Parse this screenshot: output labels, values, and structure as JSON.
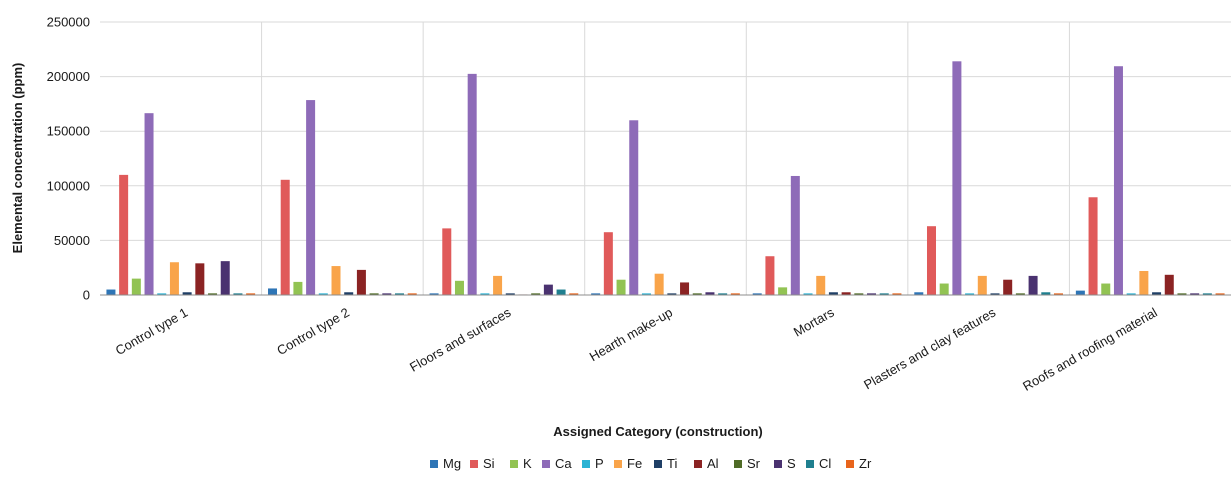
{
  "chart_data": {
    "type": "bar",
    "title": "",
    "xlabel": "Assigned Category (construction)",
    "ylabel": "Elemental concentration (ppm)",
    "ylim": [
      0,
      250000
    ],
    "yticks": [
      "0",
      "50000",
      "100000",
      "150000",
      "200000",
      "250000"
    ],
    "grid": true,
    "legend_position": "bottom",
    "categories": [
      "Control type 1",
      "Control type 2",
      "Floors and surfaces",
      "Hearth make-up",
      "Mortars",
      "Plasters and clay features",
      "Roofs and roofing material"
    ],
    "series": [
      {
        "name": "Mg",
        "color": "#2e75b6",
        "values": [
          5000,
          6000,
          1500,
          1500,
          1500,
          2500,
          4000
        ]
      },
      {
        "name": "Si",
        "color": "#e05a5a",
        "values": [
          110000,
          105500,
          61000,
          57500,
          35500,
          63000,
          89500
        ]
      },
      {
        "name": "K",
        "color": "#92c353",
        "values": [
          15000,
          12000,
          13000,
          14000,
          7000,
          10500,
          10500
        ]
      },
      {
        "name": "Ca",
        "color": "#8e6bb8",
        "values": [
          166500,
          178500,
          202500,
          160000,
          109000,
          214000,
          209500
        ]
      },
      {
        "name": "P",
        "color": "#2bb3d4",
        "values": [
          1500,
          1500,
          1500,
          1500,
          1500,
          1500,
          1500
        ]
      },
      {
        "name": "Fe",
        "color": "#f9a44a",
        "values": [
          30000,
          26500,
          17500,
          19500,
          17500,
          17500,
          22000
        ]
      },
      {
        "name": "Ti",
        "color": "#1f3f66",
        "values": [
          2500,
          2500,
          1500,
          1500,
          2500,
          1500,
          2500
        ]
      },
      {
        "name": "Al",
        "color": "#8b2323",
        "values": [
          29000,
          23000,
          500,
          11500,
          2500,
          14000,
          18500
        ]
      },
      {
        "name": "Sr",
        "color": "#4f6b26",
        "values": [
          1500,
          1500,
          1500,
          1500,
          1500,
          1500,
          1500
        ]
      },
      {
        "name": "S",
        "color": "#4a3270",
        "values": [
          31000,
          1500,
          9500,
          2500,
          1500,
          17500,
          1500
        ]
      },
      {
        "name": "Cl",
        "color": "#1f7f8f",
        "values": [
          1500,
          1500,
          5000,
          1500,
          1500,
          2500,
          1500
        ]
      },
      {
        "name": "Zr",
        "color": "#e8641b",
        "values": [
          1500,
          1500,
          1500,
          1500,
          1500,
          1500,
          1500
        ]
      }
    ]
  }
}
